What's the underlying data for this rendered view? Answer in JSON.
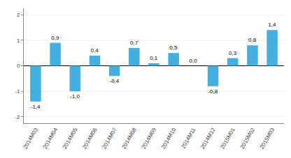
{
  "chart_data": {
    "type": "bar",
    "categories": [
      "2014M03",
      "2014M04",
      "2014M05",
      "2014M06",
      "2014M07",
      "2014M08",
      "2014M09",
      "2014M10",
      "2014M11",
      "2014M12",
      "2015M01",
      "2015M02",
      "2015M03"
    ],
    "values": [
      -1.4,
      0.9,
      -1.0,
      0.4,
      -0.4,
      0.7,
      0.1,
      0.5,
      0.0,
      -0.8,
      0.3,
      0.8,
      1.4
    ],
    "value_labels": [
      "-1,4",
      "0,9",
      "-1,0",
      "0,4",
      "-0,4",
      "0,7",
      "0,1",
      "0,5",
      "0,0",
      "-0,8",
      "0,3",
      "0,8",
      "1,4"
    ],
    "color": "#44aee0",
    "ylim": [
      -2.25,
      2.25
    ],
    "yticks": [
      -2,
      -1,
      0,
      1,
      2
    ],
    "grid": true,
    "data_labels": true
  }
}
